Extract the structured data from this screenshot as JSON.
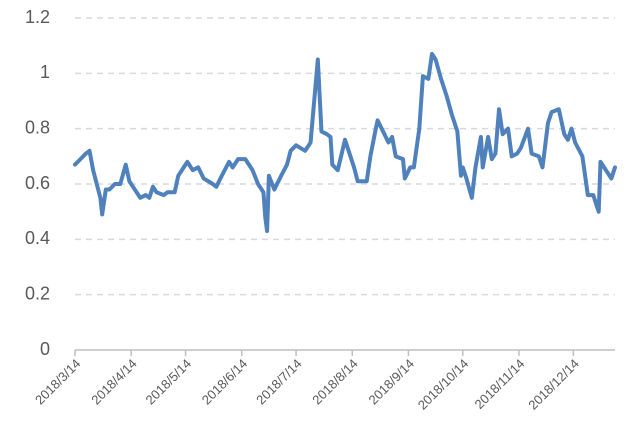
{
  "chart_data": {
    "type": "line",
    "x": [
      "2018-03-14",
      "2018-03-17",
      "2018-03-20",
      "2018-03-22",
      "2018-03-24",
      "2018-03-26",
      "2018-03-28",
      "2018-03-29",
      "2018-03-31",
      "2018-04-02",
      "2018-04-05",
      "2018-04-08",
      "2018-04-11",
      "2018-04-13",
      "2018-04-17",
      "2018-04-19",
      "2018-04-22",
      "2018-04-24",
      "2018-04-26",
      "2018-04-28",
      "2018-05-02",
      "2018-05-04",
      "2018-05-08",
      "2018-05-10",
      "2018-05-13",
      "2018-05-15",
      "2018-05-18",
      "2018-05-21",
      "2018-05-24",
      "2018-05-29",
      "2018-05-31",
      "2018-06-03",
      "2018-06-07",
      "2018-06-09",
      "2018-06-12",
      "2018-06-16",
      "2018-06-20",
      "2018-06-23",
      "2018-06-26",
      "2018-06-27",
      "2018-06-28",
      "2018-06-29",
      "2018-07-02",
      "2018-07-05",
      "2018-07-09",
      "2018-07-11",
      "2018-07-14",
      "2018-07-19",
      "2018-07-22",
      "2018-07-24",
      "2018-07-26",
      "2018-07-28",
      "2018-07-31",
      "2018-08-02",
      "2018-08-03",
      "2018-08-06",
      "2018-08-10",
      "2018-08-13",
      "2018-08-15",
      "2018-08-17",
      "2018-08-22",
      "2018-08-24",
      "2018-08-27",
      "2018-08-28",
      "2018-08-31",
      "2018-09-03",
      "2018-09-05",
      "2018-09-07",
      "2018-09-11",
      "2018-09-12",
      "2018-09-15",
      "2018-09-17",
      "2018-09-20",
      "2018-09-22",
      "2018-09-25",
      "2018-09-27",
      "2018-09-29",
      "2018-10-02",
      "2018-10-05",
      "2018-10-08",
      "2018-10-11",
      "2018-10-13",
      "2018-10-14",
      "2018-10-16",
      "2018-10-19",
      "2018-10-21",
      "2018-10-24",
      "2018-10-25",
      "2018-10-28",
      "2018-10-30",
      "2018-11-01",
      "2018-11-03",
      "2018-11-05",
      "2018-11-08",
      "2018-11-10",
      "2018-11-13",
      "2018-11-15",
      "2018-11-19",
      "2018-11-21",
      "2018-11-25",
      "2018-11-27",
      "2018-11-30",
      "2018-12-02",
      "2018-12-06",
      "2018-12-09",
      "2018-12-11",
      "2018-12-13",
      "2018-12-15",
      "2018-12-19",
      "2018-12-22",
      "2018-12-25",
      "2018-12-28",
      "2018-12-29",
      "2019-01-02",
      "2019-01-04",
      "2019-01-06"
    ],
    "series": [
      {
        "color": "#4f81bd",
        "values": [
          0.67,
          0.69,
          0.71,
          0.72,
          0.65,
          0.6,
          0.55,
          0.49,
          0.58,
          0.58,
          0.6,
          0.6,
          0.67,
          0.61,
          0.57,
          0.55,
          0.56,
          0.55,
          0.59,
          0.57,
          0.56,
          0.57,
          0.57,
          0.63,
          0.66,
          0.68,
          0.65,
          0.66,
          0.62,
          0.6,
          0.59,
          0.63,
          0.68,
          0.66,
          0.69,
          0.69,
          0.65,
          0.6,
          0.57,
          0.48,
          0.43,
          0.63,
          0.58,
          0.62,
          0.67,
          0.72,
          0.74,
          0.72,
          0.75,
          0.9,
          1.05,
          0.79,
          0.78,
          0.77,
          0.67,
          0.65,
          0.76,
          0.7,
          0.66,
          0.61,
          0.61,
          0.7,
          0.8,
          0.83,
          0.79,
          0.75,
          0.77,
          0.7,
          0.69,
          0.62,
          0.66,
          0.66,
          0.8,
          0.99,
          0.98,
          1.07,
          1.05,
          0.98,
          0.92,
          0.85,
          0.79,
          0.63,
          0.66,
          0.62,
          0.55,
          0.66,
          0.77,
          0.66,
          0.77,
          0.69,
          0.71,
          0.87,
          0.78,
          0.8,
          0.7,
          0.71,
          0.73,
          0.8,
          0.71,
          0.7,
          0.66,
          0.82,
          0.86,
          0.87,
          0.78,
          0.76,
          0.8,
          0.75,
          0.7,
          0.56,
          0.56,
          0.5,
          0.68,
          0.64,
          0.62,
          0.66
        ]
      }
    ],
    "xlim": [
      "2018-03-14",
      "2019-01-06"
    ],
    "xticks": [
      {
        "value": "2018-03-14",
        "label": "2018/3/14"
      },
      {
        "value": "2018-04-14",
        "label": "2018/4/14"
      },
      {
        "value": "2018-05-14",
        "label": "2018/5/14"
      },
      {
        "value": "2018-06-14",
        "label": "2018/6/14"
      },
      {
        "value": "2018-07-14",
        "label": "2018/7/14"
      },
      {
        "value": "2018-08-14",
        "label": "2018/8/14"
      },
      {
        "value": "2018-09-14",
        "label": "2018/9/14"
      },
      {
        "value": "2018-10-14",
        "label": "2018/10/14"
      },
      {
        "value": "2018-11-14",
        "label": "2018/11/14"
      },
      {
        "value": "2018-12-14",
        "label": "2018/12/14"
      }
    ],
    "ylim": [
      0,
      1.2
    ],
    "yticks": [
      0,
      0.2,
      0.4,
      0.6,
      0.8,
      1,
      1.2
    ],
    "grid": true
  }
}
